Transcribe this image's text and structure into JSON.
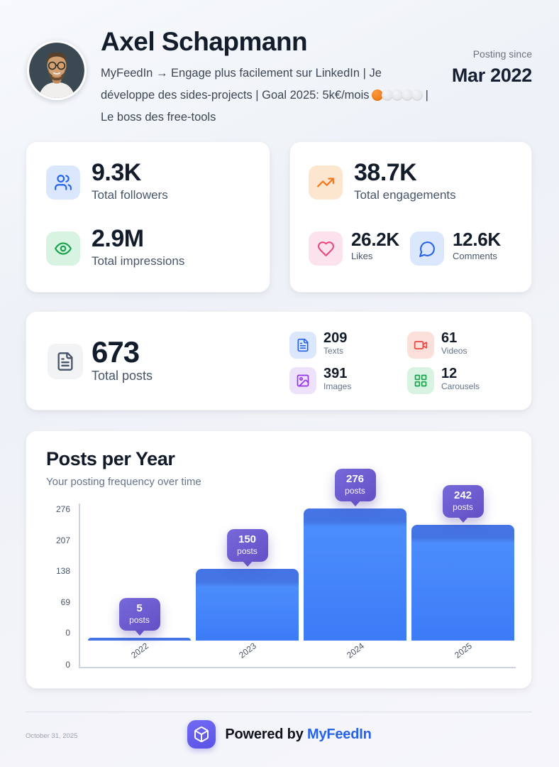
{
  "header": {
    "name": "Axel Schapmann",
    "bio_prefix": "MyFeedIn → Engage plus facilement sur LinkedIn | Je développe des sides-projects | Goal 2025: 5k€/mois ",
    "bio_suffix": " | Le boss des free-tools",
    "goal_progress": {
      "filled": 1,
      "total": 5
    },
    "posting_since_label": "Posting since",
    "posting_since_value": "Mar 2022"
  },
  "stats": {
    "followers": {
      "value": "9.3K",
      "label": "Total followers"
    },
    "impressions": {
      "value": "2.9M",
      "label": "Total impressions"
    },
    "engagements": {
      "value": "38.7K",
      "label": "Total engagements"
    },
    "likes": {
      "value": "26.2K",
      "label": "Likes"
    },
    "comments": {
      "value": "12.6K",
      "label": "Comments"
    }
  },
  "posts": {
    "total": {
      "value": "673",
      "label": "Total posts"
    },
    "breakdown": [
      {
        "value": "209",
        "label": "Texts",
        "icon": "file-text-icon"
      },
      {
        "value": "61",
        "label": "Videos",
        "icon": "video-icon"
      },
      {
        "value": "391",
        "label": "Images",
        "icon": "image-icon"
      },
      {
        "value": "12",
        "label": "Carousels",
        "icon": "grid-icon"
      }
    ]
  },
  "chart_card": {
    "title": "Posts per Year",
    "subtitle": "Your posting frequency over time"
  },
  "chart_data": {
    "type": "bar",
    "categories": [
      "2022",
      "2023",
      "2024",
      "2025"
    ],
    "values": [
      5,
      150,
      276,
      242
    ],
    "bar_label_word": "posts",
    "yticks": [
      276,
      207,
      138,
      69,
      0
    ],
    "baseline_label": "0",
    "ylim": [
      0,
      276
    ],
    "title": "Posts per Year",
    "xlabel": "",
    "ylabel": "",
    "grid": false,
    "legend": "none",
    "bar_color": "#4285fb",
    "bubble_color": "#6a58cf"
  },
  "footer": {
    "date": "October 31, 2025",
    "powered_by": "Powered by",
    "brand": "MyFeedIn"
  },
  "colors": {
    "accent_blue": "#2563eb",
    "green": "#16a34a",
    "orange": "#f97316",
    "pink": "#e8487c",
    "red": "#ef4444",
    "purple": "#9333ea",
    "brand_indigo": "#5a52e6",
    "text_dark": "#131c2b",
    "text_muted": "#64748b"
  }
}
